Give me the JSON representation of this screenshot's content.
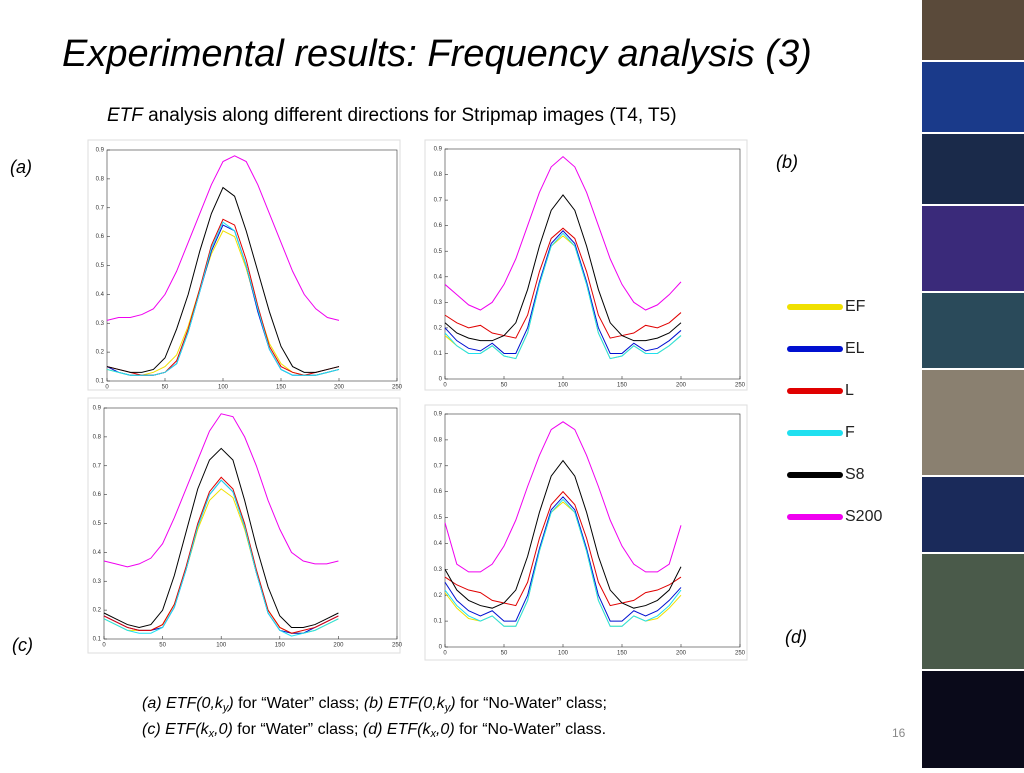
{
  "title": "Experimental results: Frequency analysis (3)",
  "subtitle": {
    "em": "ETF",
    "rest": " analysis along different directions for Stripmap images (T4, T5)"
  },
  "caption": {
    "line1": [
      "(a) ETF(0,k",
      "y",
      ")",
      " for “Water” class; ",
      "(b) ETF(0,k",
      "y",
      ")",
      " for “No-Water” class;"
    ],
    "line2": [
      "(c) ETF(k",
      "x",
      ",0)",
      " for “Water” class; ",
      "(d) ETF(k",
      "x",
      ",0)",
      " for “No-Water” class."
    ]
  },
  "page_number": "16",
  "chart_data": [
    {
      "type": "line",
      "panel_label": "(a)",
      "x": [
        0,
        10,
        20,
        30,
        40,
        50,
        60,
        70,
        80,
        90,
        100,
        110,
        120,
        130,
        140,
        150,
        160,
        170,
        180,
        190,
        200
      ],
      "xlim": [
        0,
        250
      ],
      "xticks": [
        0,
        50,
        100,
        150,
        200,
        250
      ],
      "ylim": [
        0.1,
        0.9
      ],
      "yticks": [
        0.1,
        0.2,
        0.3,
        0.4,
        0.5,
        0.6,
        0.7,
        0.8,
        0.9
      ],
      "series": [
        {
          "name": "EF",
          "color": "#f0e000",
          "values": [
            0.14,
            0.13,
            0.12,
            0.12,
            0.13,
            0.15,
            0.19,
            0.29,
            0.42,
            0.54,
            0.62,
            0.6,
            0.49,
            0.35,
            0.23,
            0.16,
            0.13,
            0.12,
            0.12,
            0.13,
            0.14
          ]
        },
        {
          "name": "EL",
          "color": "#0010d0",
          "values": [
            0.15,
            0.13,
            0.12,
            0.12,
            0.12,
            0.13,
            0.16,
            0.27,
            0.41,
            0.55,
            0.64,
            0.62,
            0.5,
            0.34,
            0.21,
            0.14,
            0.12,
            0.12,
            0.12,
            0.13,
            0.14
          ]
        },
        {
          "name": "L",
          "color": "#e00000",
          "values": [
            0.15,
            0.14,
            0.13,
            0.12,
            0.12,
            0.13,
            0.17,
            0.28,
            0.42,
            0.57,
            0.66,
            0.64,
            0.52,
            0.36,
            0.22,
            0.15,
            0.13,
            0.12,
            0.13,
            0.14,
            0.15
          ]
        },
        {
          "name": "F",
          "color": "#20e0f0",
          "values": [
            0.14,
            0.13,
            0.12,
            0.12,
            0.12,
            0.13,
            0.16,
            0.27,
            0.41,
            0.56,
            0.65,
            0.62,
            0.5,
            0.35,
            0.21,
            0.14,
            0.12,
            0.12,
            0.12,
            0.13,
            0.14
          ]
        },
        {
          "name": "S8",
          "color": "#000000",
          "values": [
            0.15,
            0.14,
            0.13,
            0.13,
            0.14,
            0.18,
            0.28,
            0.4,
            0.55,
            0.68,
            0.77,
            0.74,
            0.62,
            0.48,
            0.34,
            0.22,
            0.15,
            0.13,
            0.13,
            0.14,
            0.15
          ]
        },
        {
          "name": "S200",
          "color": "#f000f0",
          "values": [
            0.31,
            0.32,
            0.32,
            0.33,
            0.35,
            0.4,
            0.48,
            0.58,
            0.68,
            0.78,
            0.86,
            0.88,
            0.86,
            0.78,
            0.68,
            0.58,
            0.48,
            0.4,
            0.35,
            0.32,
            0.31
          ]
        }
      ]
    },
    {
      "type": "line",
      "panel_label": "(b)",
      "x": [
        0,
        10,
        20,
        30,
        40,
        50,
        60,
        70,
        80,
        90,
        100,
        110,
        120,
        130,
        140,
        150,
        160,
        170,
        180,
        190,
        200
      ],
      "xlim": [
        0,
        250
      ],
      "xticks": [
        0,
        50,
        100,
        150,
        200,
        250
      ],
      "ylim": [
        0,
        0.9
      ],
      "yticks": [
        0,
        0.1,
        0.2,
        0.3,
        0.4,
        0.5,
        0.6,
        0.7,
        0.8,
        0.9
      ],
      "series": [
        {
          "color": "#f0e000",
          "values": [
            0.17,
            0.13,
            0.1,
            0.1,
            0.13,
            0.09,
            0.08,
            0.18,
            0.37,
            0.52,
            0.56,
            0.52,
            0.37,
            0.18,
            0.08,
            0.09,
            0.13,
            0.1,
            0.1,
            0.13,
            0.17
          ]
        },
        {
          "color": "#0010d0",
          "values": [
            0.2,
            0.15,
            0.12,
            0.11,
            0.14,
            0.1,
            0.1,
            0.2,
            0.38,
            0.53,
            0.58,
            0.53,
            0.38,
            0.2,
            0.1,
            0.1,
            0.14,
            0.11,
            0.12,
            0.15,
            0.19
          ]
        },
        {
          "color": "#e00000",
          "values": [
            0.25,
            0.22,
            0.2,
            0.21,
            0.18,
            0.17,
            0.16,
            0.25,
            0.42,
            0.55,
            0.59,
            0.55,
            0.42,
            0.25,
            0.16,
            0.17,
            0.18,
            0.21,
            0.2,
            0.22,
            0.26
          ]
        },
        {
          "color": "#20e0f0",
          "values": [
            0.18,
            0.13,
            0.1,
            0.1,
            0.13,
            0.09,
            0.08,
            0.18,
            0.37,
            0.52,
            0.57,
            0.52,
            0.37,
            0.18,
            0.08,
            0.09,
            0.13,
            0.1,
            0.1,
            0.13,
            0.17
          ]
        },
        {
          "color": "#000000",
          "values": [
            0.22,
            0.18,
            0.16,
            0.15,
            0.15,
            0.17,
            0.22,
            0.35,
            0.52,
            0.66,
            0.72,
            0.66,
            0.52,
            0.35,
            0.22,
            0.17,
            0.15,
            0.15,
            0.16,
            0.18,
            0.22
          ]
        },
        {
          "color": "#f000f0",
          "values": [
            0.37,
            0.33,
            0.29,
            0.27,
            0.3,
            0.37,
            0.47,
            0.6,
            0.73,
            0.83,
            0.87,
            0.83,
            0.73,
            0.6,
            0.47,
            0.37,
            0.3,
            0.27,
            0.29,
            0.33,
            0.38
          ]
        }
      ]
    },
    {
      "type": "line",
      "panel_label": "(c)",
      "x": [
        0,
        10,
        20,
        30,
        40,
        50,
        60,
        70,
        80,
        90,
        100,
        110,
        120,
        130,
        140,
        150,
        160,
        170,
        180,
        190,
        200
      ],
      "xlim": [
        0,
        250
      ],
      "xticks": [
        0,
        50,
        100,
        150,
        200,
        250
      ],
      "ylim": [
        0.1,
        0.9
      ],
      "yticks": [
        0.1,
        0.2,
        0.3,
        0.4,
        0.5,
        0.6,
        0.7,
        0.8,
        0.9
      ],
      "series": [
        {
          "color": "#f0e000",
          "values": [
            0.17,
            0.15,
            0.13,
            0.13,
            0.13,
            0.15,
            0.22,
            0.34,
            0.48,
            0.58,
            0.62,
            0.59,
            0.48,
            0.33,
            0.2,
            0.14,
            0.12,
            0.12,
            0.13,
            0.15,
            0.17
          ]
        },
        {
          "color": "#0010d0",
          "values": [
            0.18,
            0.16,
            0.14,
            0.13,
            0.13,
            0.14,
            0.21,
            0.34,
            0.49,
            0.6,
            0.65,
            0.61,
            0.49,
            0.33,
            0.19,
            0.13,
            0.12,
            0.12,
            0.14,
            0.16,
            0.18
          ]
        },
        {
          "color": "#e00000",
          "values": [
            0.18,
            0.16,
            0.14,
            0.13,
            0.13,
            0.15,
            0.22,
            0.35,
            0.5,
            0.61,
            0.66,
            0.62,
            0.5,
            0.34,
            0.2,
            0.14,
            0.12,
            0.13,
            0.14,
            0.16,
            0.18
          ]
        },
        {
          "color": "#20e0f0",
          "values": [
            0.17,
            0.15,
            0.13,
            0.12,
            0.12,
            0.14,
            0.21,
            0.34,
            0.49,
            0.6,
            0.65,
            0.61,
            0.49,
            0.33,
            0.19,
            0.13,
            0.11,
            0.12,
            0.13,
            0.15,
            0.17
          ]
        },
        {
          "color": "#000000",
          "values": [
            0.19,
            0.17,
            0.15,
            0.14,
            0.15,
            0.2,
            0.32,
            0.47,
            0.62,
            0.72,
            0.76,
            0.72,
            0.58,
            0.42,
            0.28,
            0.18,
            0.14,
            0.14,
            0.15,
            0.17,
            0.19
          ]
        },
        {
          "color": "#f000f0",
          "values": [
            0.37,
            0.36,
            0.35,
            0.36,
            0.38,
            0.43,
            0.52,
            0.62,
            0.72,
            0.82,
            0.88,
            0.87,
            0.8,
            0.7,
            0.58,
            0.48,
            0.4,
            0.37,
            0.36,
            0.36,
            0.37
          ]
        }
      ]
    },
    {
      "type": "line",
      "panel_label": "(d)",
      "x": [
        0,
        10,
        20,
        30,
        40,
        50,
        60,
        70,
        80,
        90,
        100,
        110,
        120,
        130,
        140,
        150,
        160,
        170,
        180,
        190,
        200
      ],
      "xlim": [
        0,
        250
      ],
      "xticks": [
        0,
        50,
        100,
        150,
        200,
        250
      ],
      "ylim": [
        0,
        0.9
      ],
      "yticks": [
        0,
        0.1,
        0.2,
        0.3,
        0.4,
        0.5,
        0.6,
        0.7,
        0.8,
        0.9
      ],
      "series": [
        {
          "color": "#f0e000",
          "values": [
            0.21,
            0.15,
            0.11,
            0.1,
            0.12,
            0.08,
            0.08,
            0.18,
            0.37,
            0.52,
            0.56,
            0.52,
            0.37,
            0.18,
            0.08,
            0.08,
            0.12,
            0.1,
            0.11,
            0.15,
            0.2
          ]
        },
        {
          "color": "#0010d0",
          "values": [
            0.25,
            0.18,
            0.14,
            0.12,
            0.14,
            0.1,
            0.1,
            0.2,
            0.38,
            0.53,
            0.58,
            0.53,
            0.38,
            0.2,
            0.1,
            0.1,
            0.14,
            0.12,
            0.14,
            0.18,
            0.23
          ]
        },
        {
          "color": "#e00000",
          "values": [
            0.27,
            0.24,
            0.22,
            0.21,
            0.18,
            0.17,
            0.16,
            0.25,
            0.42,
            0.55,
            0.6,
            0.55,
            0.42,
            0.25,
            0.16,
            0.17,
            0.18,
            0.21,
            0.22,
            0.24,
            0.27
          ]
        },
        {
          "color": "#20e0f0",
          "values": [
            0.22,
            0.16,
            0.12,
            0.1,
            0.12,
            0.08,
            0.08,
            0.18,
            0.37,
            0.52,
            0.57,
            0.52,
            0.37,
            0.18,
            0.08,
            0.08,
            0.12,
            0.1,
            0.12,
            0.16,
            0.22
          ]
        },
        {
          "color": "#000000",
          "values": [
            0.3,
            0.22,
            0.18,
            0.16,
            0.15,
            0.17,
            0.22,
            0.35,
            0.52,
            0.66,
            0.72,
            0.66,
            0.52,
            0.35,
            0.22,
            0.17,
            0.15,
            0.16,
            0.18,
            0.22,
            0.31
          ]
        },
        {
          "color": "#f000f0",
          "values": [
            0.48,
            0.32,
            0.29,
            0.29,
            0.32,
            0.39,
            0.49,
            0.62,
            0.74,
            0.84,
            0.87,
            0.84,
            0.74,
            0.62,
            0.49,
            0.39,
            0.32,
            0.29,
            0.29,
            0.32,
            0.47
          ]
        }
      ]
    }
  ]
}
